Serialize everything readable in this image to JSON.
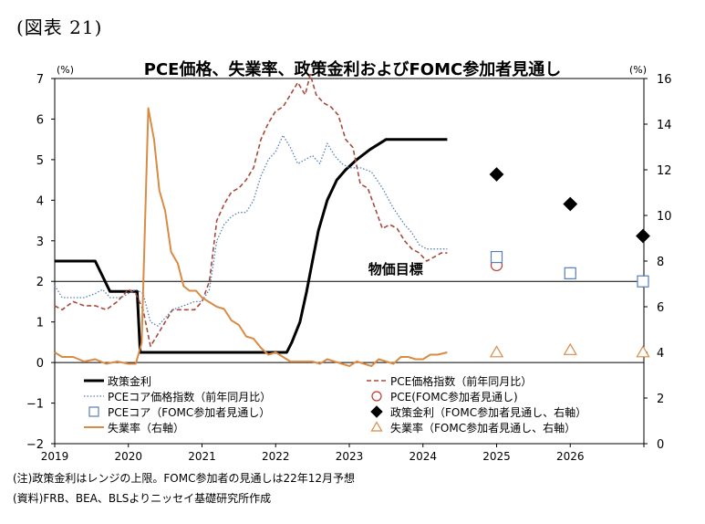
{
  "figure_label": "(図表 21)",
  "chart_data": {
    "type": "line",
    "title": "PCE価格、失業率、政策金利およびFOMC参加者見通し",
    "unit_left": "(%)",
    "unit_right": "(%)",
    "ylim_left": [
      -2,
      7
    ],
    "ylim_right": [
      0,
      16
    ],
    "yticks_left": [
      "7",
      "6",
      "5",
      "4",
      "3",
      "2",
      "1",
      "0",
      "−1",
      "−2"
    ],
    "yticks_right": [
      "16",
      "14",
      "12",
      "10",
      "8",
      "6",
      "4",
      "2",
      "0"
    ],
    "x_labels": [
      "2019",
      "2020",
      "2021",
      "2022",
      "2023",
      "2024",
      "2025",
      "2026"
    ],
    "xlim": [
      2019,
      2027
    ],
    "reference_line": {
      "label": "物価目標",
      "value": 2
    },
    "series": [
      {
        "name": "政策金利",
        "axis": "left",
        "style": "solid-thick",
        "color": "#000000",
        "points": [
          [
            2019.0,
            2.5
          ],
          [
            2019.55,
            2.5
          ],
          [
            2019.75,
            1.75
          ],
          [
            2020.12,
            1.75
          ],
          [
            2020.16,
            0.25
          ],
          [
            2022.15,
            0.25
          ],
          [
            2022.22,
            0.5
          ],
          [
            2022.33,
            1.0
          ],
          [
            2022.42,
            1.75
          ],
          [
            2022.5,
            2.5
          ],
          [
            2022.58,
            3.25
          ],
          [
            2022.7,
            4.0
          ],
          [
            2022.83,
            4.5
          ],
          [
            2022.95,
            4.75
          ],
          [
            2023.1,
            5.0
          ],
          [
            2023.28,
            5.25
          ],
          [
            2023.5,
            5.5
          ],
          [
            2024.33,
            5.5
          ]
        ]
      },
      {
        "name": "PCE価格指数（前年同月比）",
        "axis": "left",
        "style": "dashed",
        "color": "#a84a3a",
        "points": [
          [
            2019.0,
            1.4
          ],
          [
            2019.1,
            1.3
          ],
          [
            2019.25,
            1.5
          ],
          [
            2019.4,
            1.4
          ],
          [
            2019.55,
            1.4
          ],
          [
            2019.7,
            1.3
          ],
          [
            2019.85,
            1.5
          ],
          [
            2020.0,
            1.8
          ],
          [
            2020.1,
            1.7
          ],
          [
            2020.2,
            1.3
          ],
          [
            2020.3,
            0.4
          ],
          [
            2020.4,
            0.7
          ],
          [
            2020.5,
            1.0
          ],
          [
            2020.6,
            1.3
          ],
          [
            2020.75,
            1.3
          ],
          [
            2020.9,
            1.3
          ],
          [
            2021.0,
            1.5
          ],
          [
            2021.1,
            2.0
          ],
          [
            2021.2,
            3.5
          ],
          [
            2021.3,
            3.9
          ],
          [
            2021.4,
            4.2
          ],
          [
            2021.5,
            4.3
          ],
          [
            2021.6,
            4.5
          ],
          [
            2021.7,
            4.8
          ],
          [
            2021.8,
            5.5
          ],
          [
            2021.9,
            5.9
          ],
          [
            2022.0,
            6.2
          ],
          [
            2022.1,
            6.3
          ],
          [
            2022.2,
            6.6
          ],
          [
            2022.3,
            6.9
          ],
          [
            2022.4,
            6.6
          ],
          [
            2022.47,
            7.1
          ],
          [
            2022.55,
            6.6
          ],
          [
            2022.65,
            6.4
          ],
          [
            2022.75,
            6.3
          ],
          [
            2022.85,
            6.1
          ],
          [
            2022.95,
            5.5
          ],
          [
            2023.05,
            5.3
          ],
          [
            2023.15,
            4.4
          ],
          [
            2023.25,
            4.3
          ],
          [
            2023.35,
            3.8
          ],
          [
            2023.45,
            3.3
          ],
          [
            2023.55,
            3.4
          ],
          [
            2023.65,
            3.3
          ],
          [
            2023.75,
            3.0
          ],
          [
            2023.85,
            2.8
          ],
          [
            2023.95,
            2.7
          ],
          [
            2024.05,
            2.5
          ],
          [
            2024.15,
            2.6
          ],
          [
            2024.25,
            2.7
          ],
          [
            2024.33,
            2.7
          ]
        ]
      },
      {
        "name": "PCEコア価格指数（前年同月比）",
        "axis": "left",
        "style": "dotted",
        "color": "#5580b8",
        "points": [
          [
            2019.0,
            1.9
          ],
          [
            2019.1,
            1.6
          ],
          [
            2019.2,
            1.6
          ],
          [
            2019.3,
            1.6
          ],
          [
            2019.4,
            1.6
          ],
          [
            2019.55,
            1.7
          ],
          [
            2019.65,
            1.8
          ],
          [
            2019.75,
            1.6
          ],
          [
            2019.9,
            1.6
          ],
          [
            2020.0,
            1.7
          ],
          [
            2020.1,
            1.8
          ],
          [
            2020.2,
            1.7
          ],
          [
            2020.3,
            1.0
          ],
          [
            2020.4,
            0.9
          ],
          [
            2020.5,
            1.1
          ],
          [
            2020.6,
            1.3
          ],
          [
            2020.75,
            1.4
          ],
          [
            2020.9,
            1.5
          ],
          [
            2021.0,
            1.5
          ],
          [
            2021.1,
            1.8
          ],
          [
            2021.2,
            3.0
          ],
          [
            2021.3,
            3.4
          ],
          [
            2021.4,
            3.6
          ],
          [
            2021.5,
            3.7
          ],
          [
            2021.6,
            3.7
          ],
          [
            2021.7,
            4.0
          ],
          [
            2021.8,
            4.6
          ],
          [
            2021.9,
            5.0
          ],
          [
            2022.0,
            5.2
          ],
          [
            2022.1,
            5.6
          ],
          [
            2022.2,
            5.3
          ],
          [
            2022.3,
            4.9
          ],
          [
            2022.4,
            5.0
          ],
          [
            2022.5,
            5.1
          ],
          [
            2022.6,
            4.9
          ],
          [
            2022.7,
            5.4
          ],
          [
            2022.8,
            5.1
          ],
          [
            2022.9,
            4.9
          ],
          [
            2023.0,
            4.8
          ],
          [
            2023.15,
            4.8
          ],
          [
            2023.3,
            4.7
          ],
          [
            2023.45,
            4.3
          ],
          [
            2023.6,
            3.8
          ],
          [
            2023.75,
            3.4
          ],
          [
            2023.85,
            3.2
          ],
          [
            2023.95,
            2.9
          ],
          [
            2024.05,
            2.8
          ],
          [
            2024.15,
            2.8
          ],
          [
            2024.25,
            2.8
          ],
          [
            2024.33,
            2.8
          ]
        ]
      },
      {
        "name": "失業率（右軸）",
        "axis": "right",
        "style": "solid",
        "color": "#d98b44",
        "points": [
          [
            2019.0,
            4.0
          ],
          [
            2019.1,
            3.8
          ],
          [
            2019.25,
            3.8
          ],
          [
            2019.4,
            3.6
          ],
          [
            2019.55,
            3.7
          ],
          [
            2019.7,
            3.5
          ],
          [
            2019.85,
            3.6
          ],
          [
            2020.0,
            3.5
          ],
          [
            2020.1,
            3.5
          ],
          [
            2020.18,
            4.4
          ],
          [
            2020.27,
            14.7
          ],
          [
            2020.35,
            13.3
          ],
          [
            2020.42,
            11.1
          ],
          [
            2020.5,
            10.2
          ],
          [
            2020.58,
            8.4
          ],
          [
            2020.67,
            7.9
          ],
          [
            2020.75,
            6.9
          ],
          [
            2020.83,
            6.7
          ],
          [
            2020.92,
            6.7
          ],
          [
            2021.0,
            6.4
          ],
          [
            2021.1,
            6.2
          ],
          [
            2021.2,
            6.0
          ],
          [
            2021.3,
            5.9
          ],
          [
            2021.4,
            5.4
          ],
          [
            2021.5,
            5.2
          ],
          [
            2021.6,
            4.7
          ],
          [
            2021.7,
            4.6
          ],
          [
            2021.8,
            4.2
          ],
          [
            2021.9,
            3.9
          ],
          [
            2022.0,
            4.0
          ],
          [
            2022.1,
            3.8
          ],
          [
            2022.2,
            3.6
          ],
          [
            2022.35,
            3.6
          ],
          [
            2022.5,
            3.6
          ],
          [
            2022.6,
            3.5
          ],
          [
            2022.7,
            3.7
          ],
          [
            2022.8,
            3.6
          ],
          [
            2022.9,
            3.5
          ],
          [
            2023.0,
            3.4
          ],
          [
            2023.1,
            3.6
          ],
          [
            2023.2,
            3.5
          ],
          [
            2023.3,
            3.4
          ],
          [
            2023.4,
            3.7
          ],
          [
            2023.5,
            3.6
          ],
          [
            2023.6,
            3.5
          ],
          [
            2023.7,
            3.8
          ],
          [
            2023.8,
            3.8
          ],
          [
            2023.9,
            3.7
          ],
          [
            2024.0,
            3.7
          ],
          [
            2024.1,
            3.9
          ],
          [
            2024.2,
            3.9
          ],
          [
            2024.33,
            4.0
          ]
        ]
      }
    ],
    "projections": [
      {
        "name": "PCE(FOMC参加者見通し)",
        "axis": "left",
        "marker": "circle",
        "color": "#c0392b",
        "points": [
          [
            2025.0,
            2.4
          ],
          [
            2026.0,
            2.2
          ],
          [
            2027.0,
            2.0
          ]
        ]
      },
      {
        "name": "PCEコア(FOMC参加者見通し)",
        "axis": "left",
        "marker": "square",
        "color": "#5580b8",
        "points": [
          [
            2025.0,
            2.6
          ],
          [
            2026.0,
            2.2
          ],
          [
            2027.0,
            2.0
          ]
        ]
      },
      {
        "name": "政策金利(FOMC参加者見通し、右軸)",
        "axis": "right",
        "marker": "diamond",
        "color": "#000000",
        "points": [
          [
            2025.0,
            11.8
          ],
          [
            2026.0,
            10.5
          ],
          [
            2027.0,
            9.1
          ]
        ]
      },
      {
        "name": "失業率(FOMC参加者見通し、右軸)",
        "axis": "right",
        "marker": "triangle",
        "color": "#d98b44",
        "points": [
          [
            2025.0,
            4.0
          ],
          [
            2026.0,
            4.1
          ],
          [
            2027.0,
            4.0
          ]
        ]
      }
    ],
    "legend": {
      "placement": "bottom-inside",
      "items": [
        {
          "label": "政策金利",
          "kind": "line-solid-thick",
          "color": "#000000"
        },
        {
          "label": "PCE価格指数（前年同月比）",
          "kind": "line-dashed",
          "color": "#a84a3a"
        },
        {
          "label": "PCEコア価格指数（前年同月比）",
          "kind": "line-dotted",
          "color": "#5580b8"
        },
        {
          "label": "PCE(FOMC参加者見通し)",
          "kind": "circle",
          "color": "#c0392b"
        },
        {
          "label": "PCEコア（FOMC参加者見通し）",
          "kind": "square",
          "color": "#5580b8"
        },
        {
          "label": "政策金利（FOMC参加者見通し、右軸）",
          "kind": "diamond",
          "color": "#000000"
        },
        {
          "label": "失業率（右軸）",
          "kind": "line-solid",
          "color": "#d98b44"
        },
        {
          "label": "失業率（FOMC参加者見通し、右軸）",
          "kind": "triangle",
          "color": "#d98b44"
        }
      ]
    }
  },
  "footer": {
    "note": "(注)政策金利はレンジの上限。FOMC参加者の見通しは22年12月予想",
    "source": "(資料)FRB、BEA、BLSよりニッセイ基礎研究所作成"
  }
}
